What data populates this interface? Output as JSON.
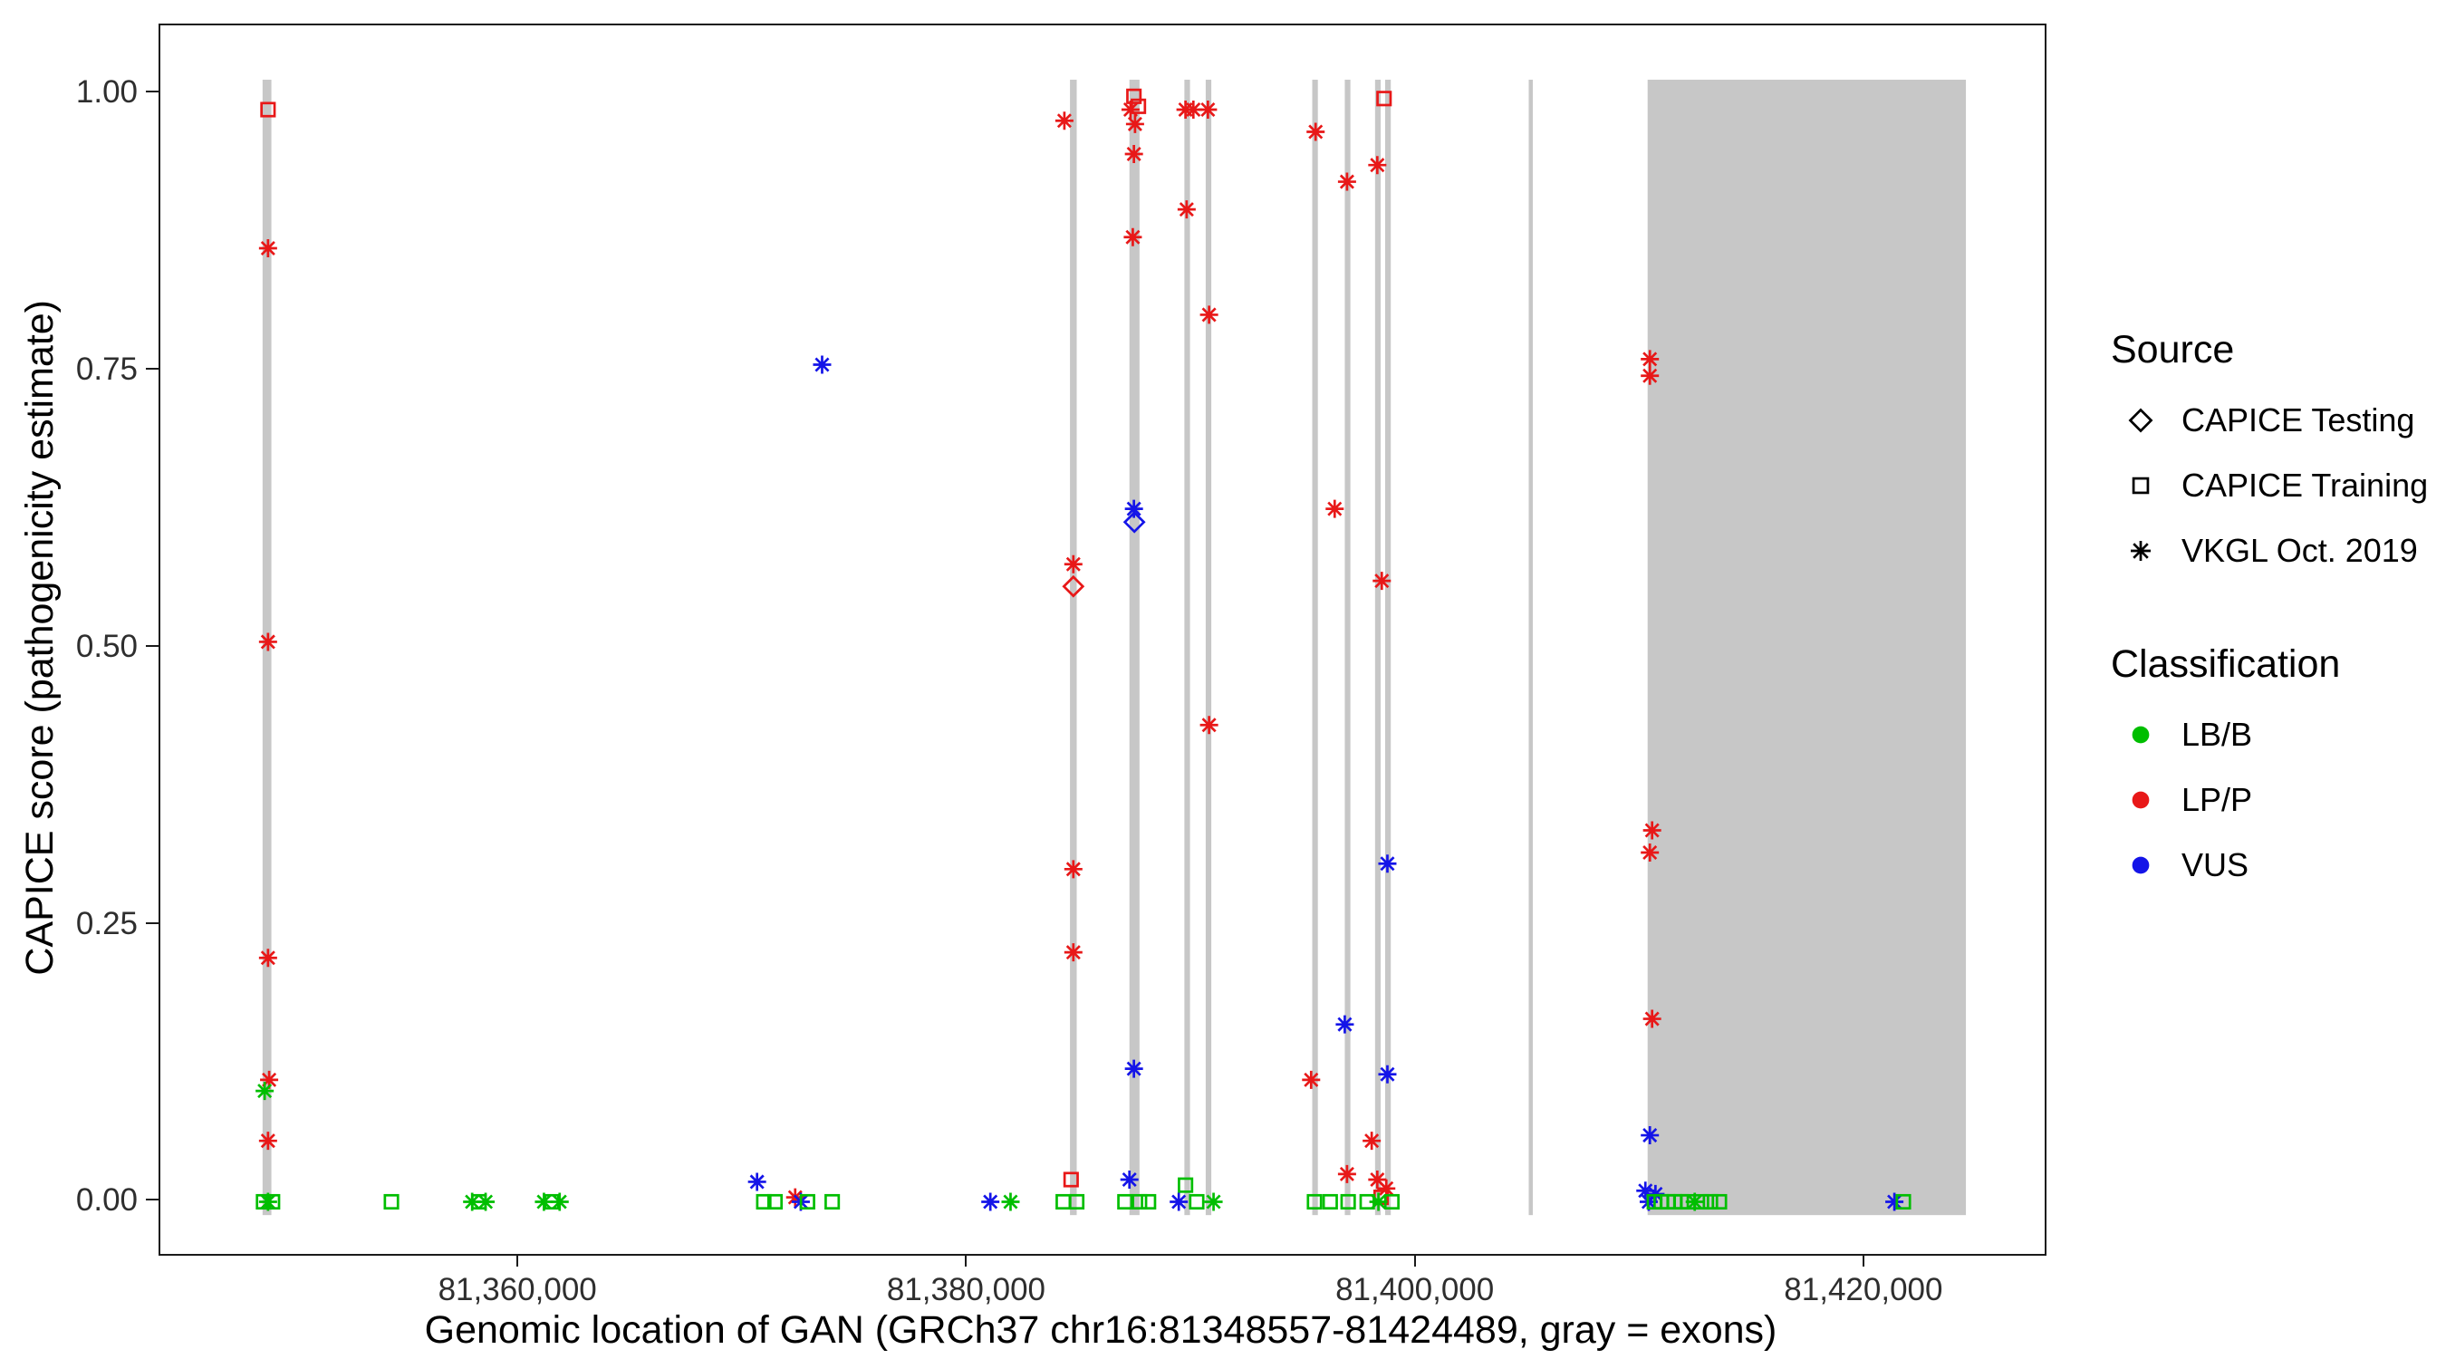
{
  "chart_data": {
    "type": "scatter",
    "title": "",
    "xlabel": "Genomic location of GAN (GRCh37 chr16:81348557-81424489, gray = exons)",
    "ylabel": "CAPICE score (pathogenicity estimate)",
    "x_domain": [
      81344000,
      81428000
    ],
    "y_domain": [
      -0.047,
      1.061
    ],
    "grid": "off",
    "x_ticks": [
      {
        "value": 81360000,
        "label": "81,360,000"
      },
      {
        "value": 81380000,
        "label": "81,380,000"
      },
      {
        "value": 81400000,
        "label": "81,400,000"
      },
      {
        "value": 81420000,
        "label": "81,420,000"
      }
    ],
    "y_ticks": [
      {
        "value": 0,
        "label": "0.00"
      },
      {
        "value": 0.25,
        "label": "0.25"
      },
      {
        "value": 0.5,
        "label": "0.50"
      },
      {
        "value": 0.75,
        "label": "0.75"
      },
      {
        "value": 1,
        "label": "1.00"
      }
    ],
    "exon_color": "#C7C7C7",
    "exons": [
      [
        81348557,
        81348950
      ],
      [
        81384550,
        81384850
      ],
      [
        81387200,
        81387650
      ],
      [
        81389650,
        81389900
      ],
      [
        81390600,
        81390850
      ],
      [
        81395350,
        81395600
      ],
      [
        81396800,
        81397050
      ],
      [
        81398150,
        81398400
      ],
      [
        81398600,
        81398850
      ],
      [
        81405000,
        81405150
      ],
      [
        81410300,
        81424489
      ]
    ],
    "shape_by_source": {
      "testing": "diamond",
      "training": "square",
      "vkgl": "asterisk"
    },
    "color_by_classification": {
      "LB/B": "#00BE00",
      "LP/P": "#E81818",
      "VUS": "#1414E8"
    },
    "point_format": [
      "genomic_position",
      "capice_score",
      "source",
      "classification"
    ],
    "points": [
      [
        81348800,
        0.985,
        "training",
        "LP/P"
      ],
      [
        81348800,
        0.86,
        "vkgl",
        "LP/P"
      ],
      [
        81348800,
        0.505,
        "vkgl",
        "LP/P"
      ],
      [
        81348800,
        0.22,
        "vkgl",
        "LP/P"
      ],
      [
        81348850,
        0.11,
        "vkgl",
        "LP/P"
      ],
      [
        81348650,
        0.1,
        "vkgl",
        "LB/B"
      ],
      [
        81348800,
        0.055,
        "vkgl",
        "LP/P"
      ],
      [
        81348600,
        0,
        "training",
        "LB/B"
      ],
      [
        81349000,
        0,
        "training",
        "LB/B"
      ],
      [
        81348800,
        0,
        "vkgl",
        "LB/B"
      ],
      [
        81354300,
        0,
        "training",
        "LB/B"
      ],
      [
        81357900,
        0,
        "vkgl",
        "LB/B"
      ],
      [
        81358200,
        0,
        "training",
        "LB/B"
      ],
      [
        81358500,
        0,
        "vkgl",
        "LB/B"
      ],
      [
        81361100,
        0,
        "vkgl",
        "LB/B"
      ],
      [
        81361450,
        0,
        "training",
        "LB/B"
      ],
      [
        81361800,
        0,
        "vkgl",
        "LB/B"
      ],
      [
        81370600,
        0.018,
        "vkgl",
        "VUS"
      ],
      [
        81370900,
        0,
        "training",
        "LB/B"
      ],
      [
        81371400,
        0,
        "training",
        "LB/B"
      ],
      [
        81372300,
        0.004,
        "vkgl",
        "LP/P"
      ],
      [
        81372550,
        0,
        "vkgl",
        "VUS"
      ],
      [
        81372850,
        0,
        "training",
        "LB/B"
      ],
      [
        81373500,
        0.755,
        "vkgl",
        "VUS"
      ],
      [
        81373950,
        0,
        "training",
        "LB/B"
      ],
      [
        81381000,
        0,
        "vkgl",
        "VUS"
      ],
      [
        81381900,
        0,
        "vkgl",
        "LB/B"
      ],
      [
        81384300,
        0.975,
        "vkgl",
        "LP/P"
      ],
      [
        81384700,
        0.575,
        "vkgl",
        "LP/P"
      ],
      [
        81384700,
        0.555,
        "testing",
        "LP/P"
      ],
      [
        81384700,
        0.3,
        "vkgl",
        "LP/P"
      ],
      [
        81384700,
        0.225,
        "vkgl",
        "LP/P"
      ],
      [
        81384600,
        0.02,
        "training",
        "LP/P"
      ],
      [
        81384250,
        0,
        "training",
        "LB/B"
      ],
      [
        81384850,
        0,
        "training",
        "LB/B"
      ],
      [
        81387400,
        0.997,
        "training",
        "LP/P"
      ],
      [
        81387600,
        0.988,
        "training",
        "LP/P"
      ],
      [
        81387250,
        0.985,
        "vkgl",
        "LP/P"
      ],
      [
        81387450,
        0.972,
        "vkgl",
        "LP/P"
      ],
      [
        81387400,
        0.945,
        "vkgl",
        "LP/P"
      ],
      [
        81387350,
        0.87,
        "vkgl",
        "LP/P"
      ],
      [
        81387400,
        0.625,
        "vkgl",
        "VUS"
      ],
      [
        81387420,
        0.613,
        "testing",
        "VUS"
      ],
      [
        81387400,
        0.12,
        "vkgl",
        "VUS"
      ],
      [
        81387200,
        0.02,
        "vkgl",
        "VUS"
      ],
      [
        81387000,
        0,
        "training",
        "LB/B"
      ],
      [
        81387650,
        0,
        "training",
        "LB/B"
      ],
      [
        81388050,
        0,
        "training",
        "LB/B"
      ],
      [
        81389700,
        0.985,
        "vkgl",
        "LP/P"
      ],
      [
        81390050,
        0.985,
        "vkgl",
        "LP/P"
      ],
      [
        81390700,
        0.985,
        "vkgl",
        "LP/P"
      ],
      [
        81389750,
        0.895,
        "vkgl",
        "LP/P"
      ],
      [
        81390750,
        0.8,
        "vkgl",
        "LP/P"
      ],
      [
        81390750,
        0.43,
        "vkgl",
        "LP/P"
      ],
      [
        81389700,
        0.015,
        "training",
        "LB/B"
      ],
      [
        81389400,
        0,
        "vkgl",
        "VUS"
      ],
      [
        81390200,
        0,
        "training",
        "LB/B"
      ],
      [
        81390950,
        0,
        "vkgl",
        "LB/B"
      ],
      [
        81395500,
        0.965,
        "vkgl",
        "LP/P"
      ],
      [
        81396900,
        0.92,
        "vkgl",
        "LP/P"
      ],
      [
        81396350,
        0.625,
        "vkgl",
        "LP/P"
      ],
      [
        81396800,
        0.16,
        "vkgl",
        "VUS"
      ],
      [
        81395300,
        0.11,
        "vkgl",
        "LP/P"
      ],
      [
        81396900,
        0.025,
        "vkgl",
        "LP/P"
      ],
      [
        81395450,
        0,
        "training",
        "LB/B"
      ],
      [
        81396150,
        0,
        "training",
        "LB/B"
      ],
      [
        81396950,
        0,
        "training",
        "LB/B"
      ],
      [
        81398550,
        0.995,
        "training",
        "LP/P"
      ],
      [
        81398250,
        0.935,
        "vkgl",
        "LP/P"
      ],
      [
        81398450,
        0.56,
        "vkgl",
        "LP/P"
      ],
      [
        81398700,
        0.305,
        "vkgl",
        "VUS"
      ],
      [
        81398700,
        0.115,
        "vkgl",
        "VUS"
      ],
      [
        81398000,
        0.055,
        "vkgl",
        "LP/P"
      ],
      [
        81398250,
        0.02,
        "vkgl",
        "LP/P"
      ],
      [
        81398650,
        0.012,
        "vkgl",
        "LP/P"
      ],
      [
        81398420,
        0.004,
        "training",
        "LP/P"
      ],
      [
        81397800,
        0,
        "training",
        "LB/B"
      ],
      [
        81398300,
        0,
        "vkgl",
        "LB/B"
      ],
      [
        81398900,
        0,
        "training",
        "LB/B"
      ],
      [
        81410400,
        0.76,
        "vkgl",
        "LP/P"
      ],
      [
        81410400,
        0.745,
        "vkgl",
        "LP/P"
      ],
      [
        81410500,
        0.335,
        "vkgl",
        "LP/P"
      ],
      [
        81410400,
        0.315,
        "vkgl",
        "LP/P"
      ],
      [
        81410500,
        0.165,
        "vkgl",
        "LP/P"
      ],
      [
        81410400,
        0.06,
        "vkgl",
        "VUS"
      ],
      [
        81410200,
        0.01,
        "vkgl",
        "VUS"
      ],
      [
        81410650,
        0.007,
        "vkgl",
        "VUS"
      ],
      [
        81410350,
        0,
        "vkgl",
        "VUS"
      ],
      [
        81410600,
        0,
        "training",
        "LB/B"
      ],
      [
        81410900,
        0,
        "training",
        "LB/B"
      ],
      [
        81411200,
        0,
        "training",
        "LB/B"
      ],
      [
        81411500,
        0,
        "training",
        "LB/B"
      ],
      [
        81411800,
        0,
        "training",
        "LB/B"
      ],
      [
        81412100,
        0,
        "training",
        "LB/B"
      ],
      [
        81412400,
        0,
        "vkgl",
        "LB/B"
      ],
      [
        81412700,
        0,
        "training",
        "LB/B"
      ],
      [
        81413100,
        0,
        "training",
        "LB/B"
      ],
      [
        81413500,
        0,
        "training",
        "LB/B"
      ],
      [
        81421300,
        0,
        "vkgl",
        "VUS"
      ],
      [
        81421700,
        0,
        "training",
        "LB/B"
      ]
    ]
  },
  "legend": {
    "source": {
      "title": "Source",
      "items": [
        {
          "label": "CAPICE Testing",
          "shape": "diamond"
        },
        {
          "label": "CAPICE Training",
          "shape": "square"
        },
        {
          "label": "VKGL Oct. 2019",
          "shape": "asterisk"
        }
      ]
    },
    "classification": {
      "title": "Classification",
      "items": [
        {
          "label": "LB/B",
          "color": "#00BE00"
        },
        {
          "label": "LP/P",
          "color": "#E81818"
        },
        {
          "label": "VUS",
          "color": "#1414E8"
        }
      ]
    }
  }
}
